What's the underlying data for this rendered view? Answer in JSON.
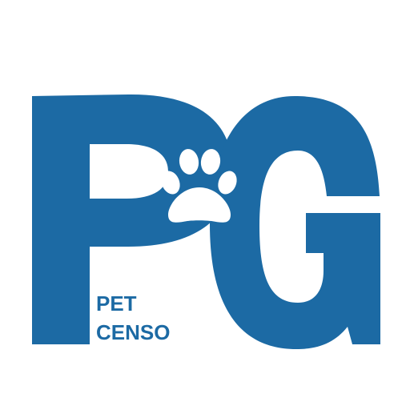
{
  "logo": {
    "monogram": "PG",
    "tagline_line1": "PET",
    "tagline_line2": "CENSO",
    "brand_color": "#1c6aa4",
    "background_color": "#ffffff",
    "paw_color": "#ffffff",
    "icon": "paw-print-icon"
  }
}
